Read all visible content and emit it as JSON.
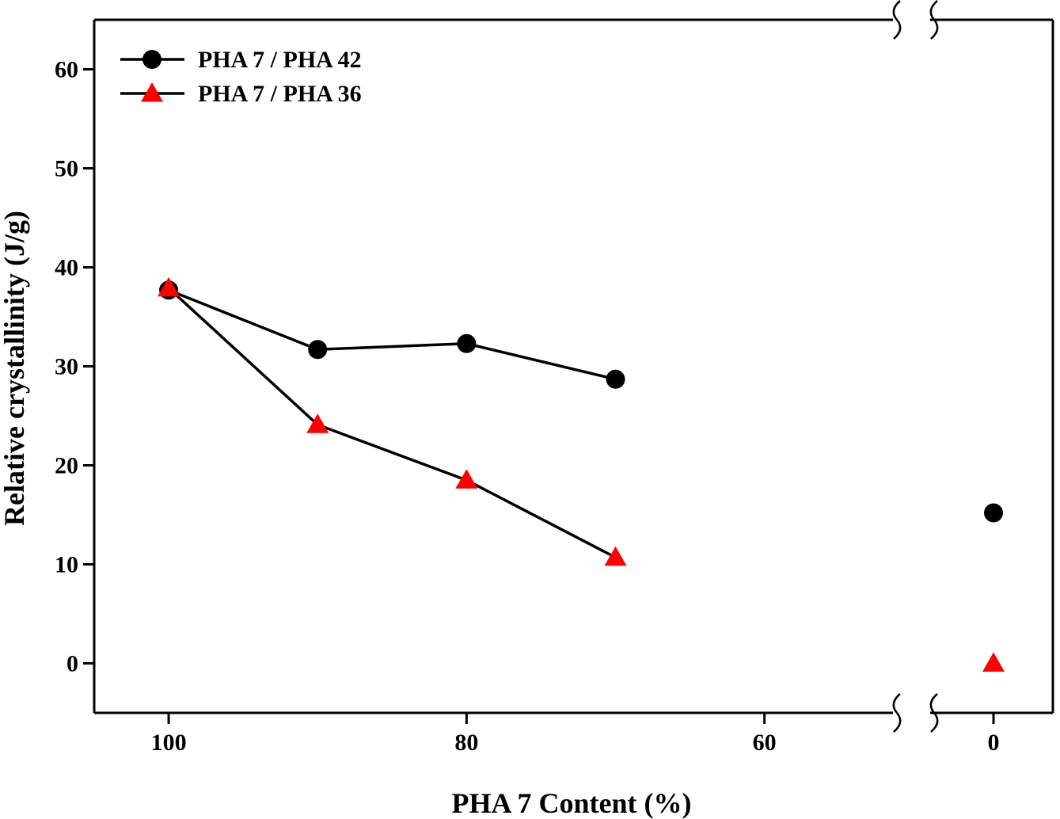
{
  "chart_data": {
    "type": "line",
    "xlabel": "PHA 7 Content (%)",
    "ylabel": "Relative crystallinity (J/g)",
    "x_axis": {
      "reversed": true,
      "broken": true,
      "segments": [
        [
          105,
          51
        ],
        [
          2,
          -2
        ]
      ],
      "ticks": [
        100,
        80,
        60,
        0
      ]
    },
    "y_axis": {
      "ylim": [
        -5,
        65
      ],
      "ticks": [
        0,
        10,
        20,
        30,
        40,
        50,
        60
      ]
    },
    "grid": false,
    "legend_position": "top-left",
    "series": [
      {
        "name": "PHA 7 / PHA 42",
        "marker": "circle",
        "color": "#000000",
        "line_color": "#000000",
        "points": [
          [
            100,
            37.7
          ],
          [
            90,
            31.7
          ],
          [
            80,
            32.3
          ],
          [
            70,
            28.7
          ],
          [
            0,
            15.2
          ]
        ],
        "connected_count": 4
      },
      {
        "name": "PHA 7 / PHA 36",
        "marker": "triangle",
        "color": "#ff0000",
        "line_color": "#000000",
        "points": [
          [
            100,
            37.9
          ],
          [
            90,
            24.1
          ],
          [
            80,
            18.5
          ],
          [
            70,
            10.7
          ],
          [
            0,
            0
          ]
        ],
        "connected_count": 4
      }
    ]
  }
}
